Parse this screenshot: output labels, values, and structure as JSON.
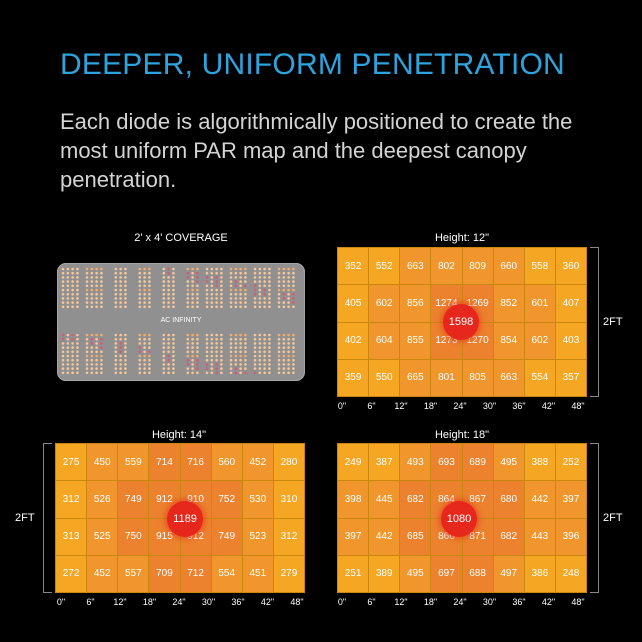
{
  "headline": "DEEPER, UNIFORM PENETRATION",
  "subtext": "Each diode is algorithmically positioned to create the most uniform PAR map and the deepest canopy penetration.",
  "light_panel": {
    "label": "2' x 4' COVERAGE",
    "brand": "AC INFINITY"
  },
  "x_ticks": [
    "0\"",
    "6\"",
    "12\"",
    "18\"",
    "24\"",
    "30\"",
    "36\"",
    "42\"",
    "48\""
  ],
  "side_label": "2FT",
  "colors": {
    "headline": "#2ea3dd",
    "cell_low": "#f5a623",
    "cell_mid": "#f1962c",
    "cell_high": "#ec822e",
    "peak": "#e5281b"
  },
  "maps": [
    {
      "label": "Height: 12\"",
      "peak": "1598",
      "rows": [
        [
          "352",
          "552",
          "663",
          "802",
          "809",
          "660",
          "558",
          "360"
        ],
        [
          "405",
          "602",
          "856",
          "1274",
          "1269",
          "852",
          "601",
          "407"
        ],
        [
          "402",
          "604",
          "855",
          "1273",
          "1270",
          "854",
          "602",
          "403"
        ],
        [
          "359",
          "550",
          "665",
          "801",
          "805",
          "663",
          "554",
          "357"
        ]
      ]
    },
    {
      "label": "Height: 14\"",
      "peak": "1189",
      "rows": [
        [
          "275",
          "450",
          "559",
          "714",
          "716",
          "560",
          "452",
          "280"
        ],
        [
          "312",
          "526",
          "749",
          "912",
          "910",
          "752",
          "530",
          "310"
        ],
        [
          "313",
          "525",
          "750",
          "915",
          "912",
          "749",
          "523",
          "312"
        ],
        [
          "272",
          "452",
          "557",
          "709",
          "712",
          "554",
          "451",
          "279"
        ]
      ]
    },
    {
      "label": "Height: 18\"",
      "peak": "1080",
      "rows": [
        [
          "249",
          "387",
          "493",
          "693",
          "689",
          "495",
          "388",
          "252"
        ],
        [
          "398",
          "445",
          "682",
          "864",
          "867",
          "680",
          "442",
          "397"
        ],
        [
          "397",
          "442",
          "685",
          "866",
          "871",
          "682",
          "443",
          "396"
        ],
        [
          "251",
          "389",
          "495",
          "697",
          "688",
          "497",
          "386",
          "248"
        ]
      ]
    }
  ]
}
